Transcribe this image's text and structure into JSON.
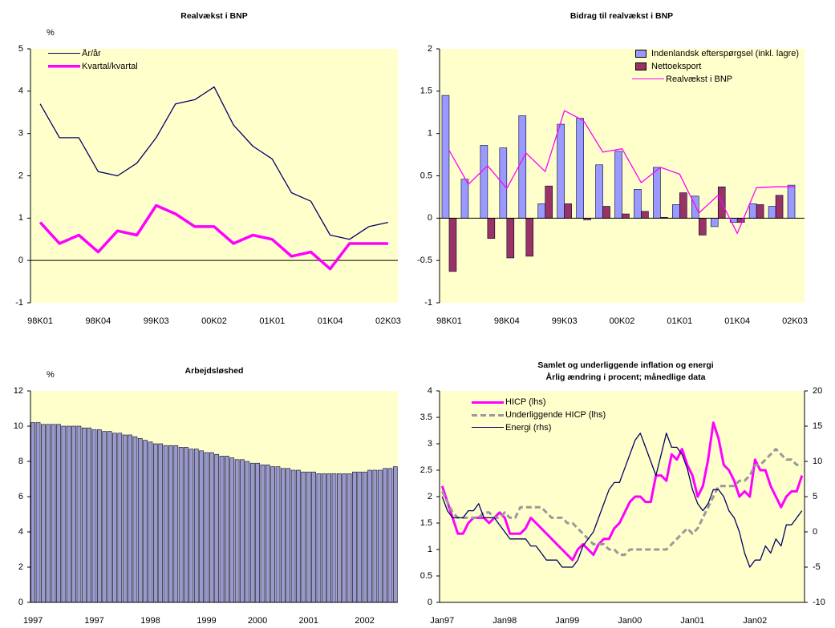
{
  "chart_data": [
    {
      "type": "line",
      "title": "Realvækst i BNP",
      "ylabel": "%",
      "background": "#ffffcc",
      "legend": "upper left",
      "categories": [
        "98K01",
        null,
        null,
        "98K04",
        null,
        null,
        "99K03",
        null,
        null,
        "00K02",
        null,
        null,
        "01K01",
        null,
        null,
        "01K04",
        null,
        null,
        "02K03"
      ],
      "series": [
        {
          "name": "År/år",
          "color": "#000066",
          "linewidth": 1.3,
          "values": [
            3.7,
            2.9,
            2.9,
            2.1,
            2.0,
            2.3,
            2.9,
            3.7,
            3.8,
            4.1,
            3.2,
            2.7,
            2.4,
            1.6,
            1.4,
            0.6,
            0.5,
            0.8,
            0.9
          ]
        },
        {
          "name": "Kvartal/kvartal",
          "color": "#ff00ff",
          "linewidth": 3.5,
          "values": [
            0.9,
            0.4,
            0.6,
            0.2,
            0.7,
            0.6,
            1.3,
            1.1,
            0.8,
            0.8,
            0.4,
            0.6,
            0.5,
            0.1,
            0.2,
            -0.2,
            0.4,
            0.4,
            0.4
          ]
        }
      ],
      "ylim": [
        -1,
        5
      ],
      "yticks": [
        -1,
        0,
        1,
        2,
        3,
        4,
        5
      ]
    },
    {
      "type": "bar",
      "title": "Bidrag til realvækst i BNP",
      "background": "#ffffcc",
      "legend": "upper right",
      "categories": [
        "98K01",
        null,
        null,
        "98K04",
        null,
        null,
        "99K03",
        null,
        null,
        "00K02",
        null,
        null,
        "01K01",
        null,
        null,
        "01K04",
        null,
        null,
        "02K03"
      ],
      "series": [
        {
          "name": "Indenlandsk efterspørgsel (inkl. lagre)",
          "color": "#9999ff",
          "values": [
            1.45,
            0.46,
            0.86,
            0.83,
            1.21,
            0.17,
            1.11,
            1.18,
            0.63,
            0.79,
            0.34,
            0.6,
            0.16,
            0.26,
            -0.1,
            -0.05,
            0.17,
            0.14,
            0.39
          ]
        },
        {
          "name": "Nettoeksport",
          "color": "#993366",
          "values": [
            -0.63,
            0.0,
            -0.24,
            -0.47,
            -0.45,
            0.38,
            0.17,
            -0.02,
            0.14,
            0.05,
            0.08,
            0.01,
            0.3,
            -0.2,
            0.37,
            -0.05,
            0.16,
            0.27,
            0.0
          ]
        },
        {
          "name": "Realvækst i BNP",
          "type": "line",
          "color": "#ff00ff",
          "linewidth": 1.3,
          "values": [
            0.8,
            0.4,
            0.62,
            0.35,
            0.77,
            0.55,
            1.27,
            1.15,
            0.78,
            0.82,
            0.42,
            0.6,
            0.52,
            0.06,
            0.27,
            -0.18,
            0.36,
            0.37,
            0.37
          ]
        }
      ],
      "ylim": [
        -1,
        2
      ],
      "yticks": [
        -1,
        -0.5,
        0,
        0.5,
        1,
        1.5,
        2
      ]
    },
    {
      "type": "bar",
      "title": "Arbejdsløshed",
      "ylabel": "%",
      "background": "#ffffcc",
      "color": "#9999cc",
      "categories": [
        "1997",
        null,
        null,
        null,
        null,
        null,
        null,
        null,
        null,
        null,
        null,
        null,
        "1997",
        null,
        null,
        null,
        null,
        null,
        null,
        null,
        null,
        null,
        null,
        "1998",
        null,
        null,
        null,
        null,
        null,
        null,
        null,
        null,
        null,
        null,
        "1999",
        null,
        null,
        null,
        null,
        null,
        null,
        null,
        null,
        null,
        "2000",
        null,
        null,
        null,
        null,
        null,
        null,
        null,
        null,
        null,
        "2001",
        null,
        null,
        null,
        null,
        null,
        null,
        null,
        null,
        null,
        null,
        "2002",
        null,
        null,
        null,
        null,
        null,
        null
      ],
      "values": [
        10.2,
        10.2,
        10.1,
        10.1,
        10.1,
        10.1,
        10.0,
        10.0,
        10.0,
        10.0,
        9.9,
        9.9,
        9.8,
        9.8,
        9.7,
        9.7,
        9.6,
        9.6,
        9.5,
        9.5,
        9.4,
        9.3,
        9.2,
        9.1,
        9.0,
        9.0,
        8.9,
        8.9,
        8.9,
        8.8,
        8.8,
        8.7,
        8.7,
        8.6,
        8.5,
        8.5,
        8.4,
        8.3,
        8.3,
        8.2,
        8.1,
        8.1,
        8.0,
        7.9,
        7.9,
        7.8,
        7.8,
        7.7,
        7.7,
        7.6,
        7.6,
        7.5,
        7.5,
        7.4,
        7.4,
        7.4,
        7.3,
        7.3,
        7.3,
        7.3,
        7.3,
        7.3,
        7.3,
        7.4,
        7.4,
        7.4,
        7.5,
        7.5,
        7.5,
        7.6,
        7.6,
        7.7
      ],
      "ylim": [
        0,
        12
      ],
      "yticks": [
        0,
        2,
        4,
        6,
        8,
        10,
        12
      ]
    },
    {
      "type": "line",
      "title": "Samlet og underliggende inflation og energi",
      "subtitle": "Årlig ændring i procent; månedlige data",
      "background": "#ffffcc",
      "legend": "upper left",
      "categories": [
        "Jan97",
        null,
        null,
        null,
        null,
        null,
        null,
        null,
        null,
        null,
        null,
        null,
        "Jan98",
        null,
        null,
        null,
        null,
        null,
        null,
        null,
        null,
        null,
        null,
        null,
        "Jan99",
        null,
        null,
        null,
        null,
        null,
        null,
        null,
        null,
        null,
        null,
        null,
        "Jan00",
        null,
        null,
        null,
        null,
        null,
        null,
        null,
        null,
        null,
        null,
        null,
        "Jan01",
        null,
        null,
        null,
        null,
        null,
        null,
        null,
        null,
        null,
        null,
        null,
        "Jan02",
        null,
        null,
        null,
        null,
        null,
        null,
        null,
        null,
        null
      ],
      "series": [
        {
          "name": "HICP (lhs)",
          "color": "#ff00ff",
          "linewidth": 3,
          "values": [
            2.2,
            1.9,
            1.6,
            1.3,
            1.3,
            1.5,
            1.6,
            1.6,
            1.6,
            1.5,
            1.6,
            1.7,
            1.6,
            1.3,
            1.3,
            1.3,
            1.4,
            1.6,
            1.5,
            1.4,
            1.3,
            1.2,
            1.1,
            1.0,
            0.9,
            0.8,
            1.0,
            1.1,
            1.0,
            0.9,
            1.1,
            1.2,
            1.2,
            1.4,
            1.5,
            1.7,
            1.9,
            2.0,
            2.0,
            1.9,
            1.9,
            2.4,
            2.4,
            2.3,
            2.8,
            2.7,
            2.9,
            2.6,
            2.4,
            2.0,
            2.2,
            2.7,
            3.4,
            3.1,
            2.6,
            2.5,
            2.3,
            2.0,
            2.1,
            2.0,
            2.7,
            2.5,
            2.5,
            2.2,
            2.0,
            1.8,
            2.0,
            2.1,
            2.1,
            2.4
          ]
        },
        {
          "name": "Underliggende HICP (lhs)",
          "color": "#999999",
          "linewidth": 3,
          "linestyle": "dashed",
          "values": [
            2.1,
            1.9,
            1.7,
            1.6,
            1.6,
            1.6,
            1.6,
            1.6,
            1.7,
            1.7,
            1.6,
            1.6,
            1.7,
            1.6,
            1.6,
            1.8,
            1.8,
            1.8,
            1.8,
            1.8,
            1.7,
            1.6,
            1.6,
            1.6,
            1.5,
            1.5,
            1.4,
            1.3,
            1.2,
            1.1,
            1.1,
            1.1,
            1.0,
            1.0,
            0.9,
            0.9,
            1.0,
            1.0,
            1.0,
            1.0,
            1.0,
            1.0,
            1.0,
            1.0,
            1.1,
            1.2,
            1.3,
            1.4,
            1.3,
            1.4,
            1.6,
            1.8,
            2.0,
            2.2,
            2.2,
            2.2,
            2.2,
            2.3,
            2.3,
            2.4,
            2.6,
            2.6,
            2.7,
            2.8,
            2.9,
            2.8,
            2.7,
            2.7,
            2.6,
            2.6
          ]
        },
        {
          "name": "Energi (rhs)",
          "color": "#000066",
          "linewidth": 1.3,
          "axis": "y2",
          "values": [
            5,
            3,
            2,
            2,
            2,
            3,
            3,
            4,
            2,
            2,
            2,
            1,
            0,
            -1,
            -1,
            -1,
            -1,
            -2,
            -2,
            -3,
            -4,
            -4,
            -4,
            -5,
            -5,
            -5,
            -4,
            -2,
            -1,
            0,
            2,
            4,
            6,
            7,
            7,
            9,
            11,
            13,
            14,
            12,
            10,
            8,
            11,
            14,
            12,
            12,
            11,
            9,
            6,
            4,
            3,
            4,
            6,
            6,
            5,
            3,
            2,
            0,
            -3,
            -5,
            -4,
            -4,
            -2,
            -3,
            -1,
            -2,
            1,
            1,
            2,
            3
          ]
        }
      ],
      "ylim": [
        0,
        4
      ],
      "yticks": [
        0,
        0.5,
        1,
        1.5,
        2,
        2.5,
        3,
        3.5,
        4
      ],
      "y2lim": [
        -10,
        20
      ],
      "y2ticks": [
        -10,
        -5,
        0,
        5,
        10,
        15,
        20
      ]
    }
  ]
}
